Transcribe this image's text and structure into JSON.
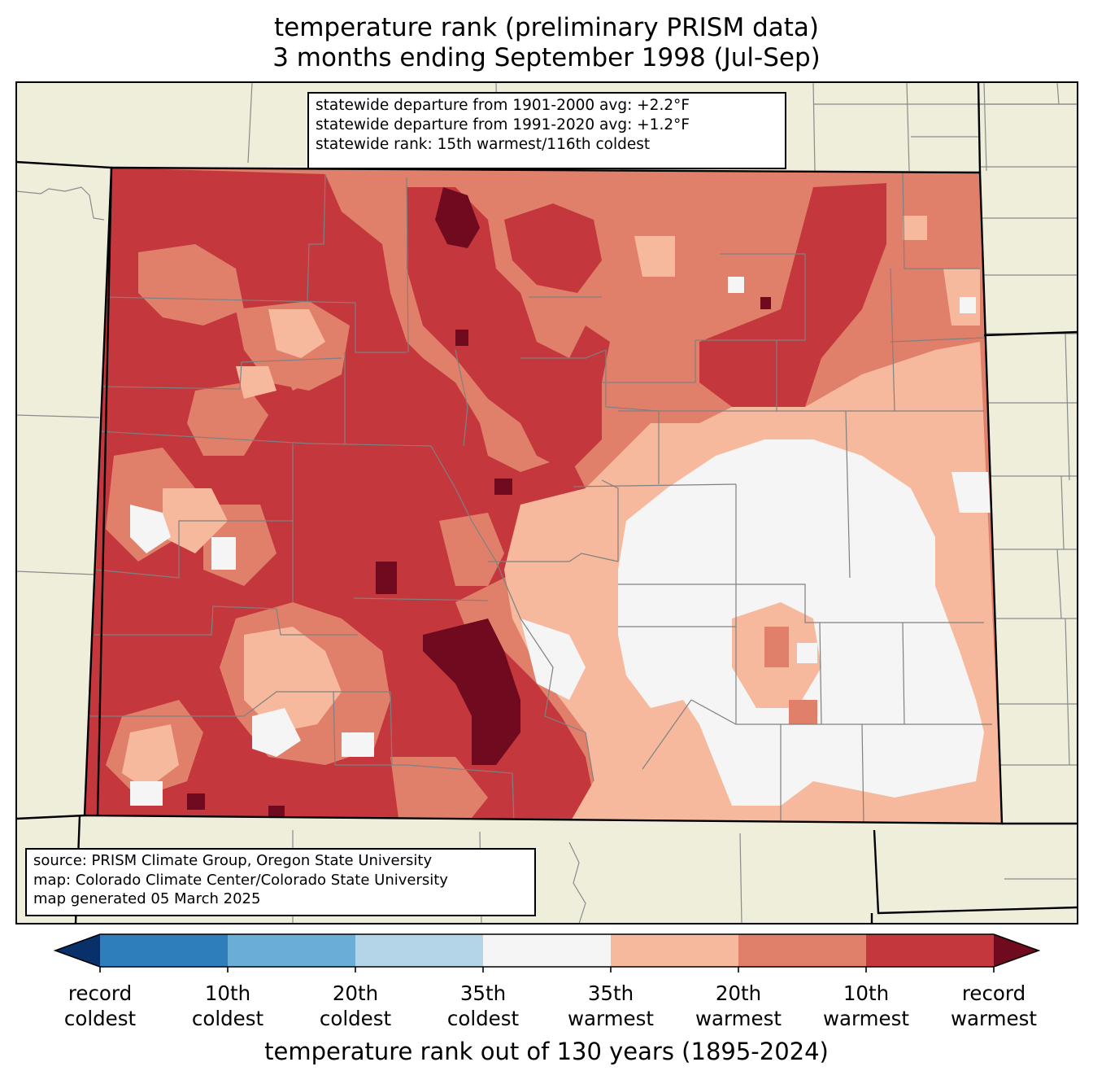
{
  "title": {
    "line1": "temperature rank (preliminary PRISM data)",
    "line2": "3 months ending September 1998 (Jul-Sep)"
  },
  "stats_box": {
    "line1": "statewide departure from 1901-2000 avg: +2.2°F",
    "line2": "statewide departure from 1991-2020 avg: +1.2°F",
    "line3": "statewide rank: 15th warmest/116th coldest"
  },
  "source_box": {
    "line1": "source: PRISM Climate Group, Oregon State University",
    "line2": "map: Colorado Climate Center/Colorado State University",
    "line3": "map generated 05 March 2025"
  },
  "colorbar": {
    "label": "temperature rank out of 130 years (1895-2024)",
    "ticks": [
      {
        "line1": "record",
        "line2": "coldest"
      },
      {
        "line1": "10th",
        "line2": "coldest"
      },
      {
        "line1": "20th",
        "line2": "coldest"
      },
      {
        "line1": "35th",
        "line2": "coldest"
      },
      {
        "line1": "35th",
        "line2": "warmest"
      },
      {
        "line1": "20th",
        "line2": "warmest"
      },
      {
        "line1": "10th",
        "line2": "warmest"
      },
      {
        "line1": "record",
        "line2": "warmest"
      }
    ],
    "colors": [
      "#08306b",
      "#2e7ebc",
      "#6aaed6",
      "#b3d5e7",
      "#f5f5f5",
      "#f7b99d",
      "#e0806a",
      "#c4383d",
      "#6f0a1f"
    ]
  },
  "colors": {
    "background_land": "#efeedb",
    "border": "#000000",
    "county_lines": "#808080"
  }
}
